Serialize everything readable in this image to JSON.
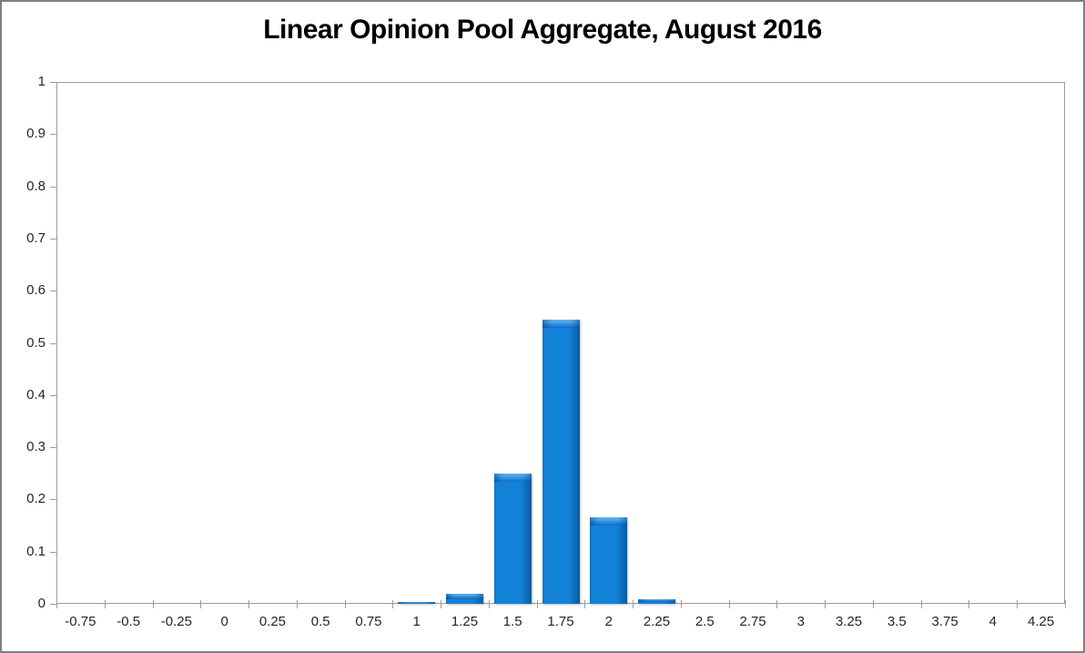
{
  "chart_data": {
    "type": "bar",
    "title": "Linear Opinion Pool Aggregate, August 2016",
    "categories": [
      "-0.75",
      "-0.5",
      "-0.25",
      "0",
      "0.25",
      "0.5",
      "0.75",
      "1",
      "1.25",
      "1.5",
      "1.75",
      "2",
      "2.25",
      "2.5",
      "2.75",
      "3",
      "3.25",
      "3.5",
      "3.75",
      "4",
      "4.25"
    ],
    "values": [
      0,
      0,
      0,
      0,
      0,
      0,
      0,
      0.004,
      0.02,
      0.25,
      0.545,
      0.165,
      0.008,
      0,
      0,
      0,
      0,
      0,
      0,
      0,
      0
    ],
    "xlabel": "",
    "ylabel": "",
    "ylim": [
      0,
      1
    ],
    "ytick_step": 0.1,
    "ytick_labels": [
      "0",
      "0.1",
      "0.2",
      "0.3",
      "0.4",
      "0.5",
      "0.6",
      "0.7",
      "0.8",
      "0.9",
      "1"
    ],
    "grid": false,
    "legend": false,
    "colors": {
      "bar_color": "#1181d7",
      "bar_edge_dark": "#0a5b9f",
      "bar_cap_light": "#7cc4f7",
      "axis_color": "#9c9c9c",
      "label_color": "#262626",
      "title_color": "#000000",
      "figure_border": "#7f7f7f"
    }
  }
}
